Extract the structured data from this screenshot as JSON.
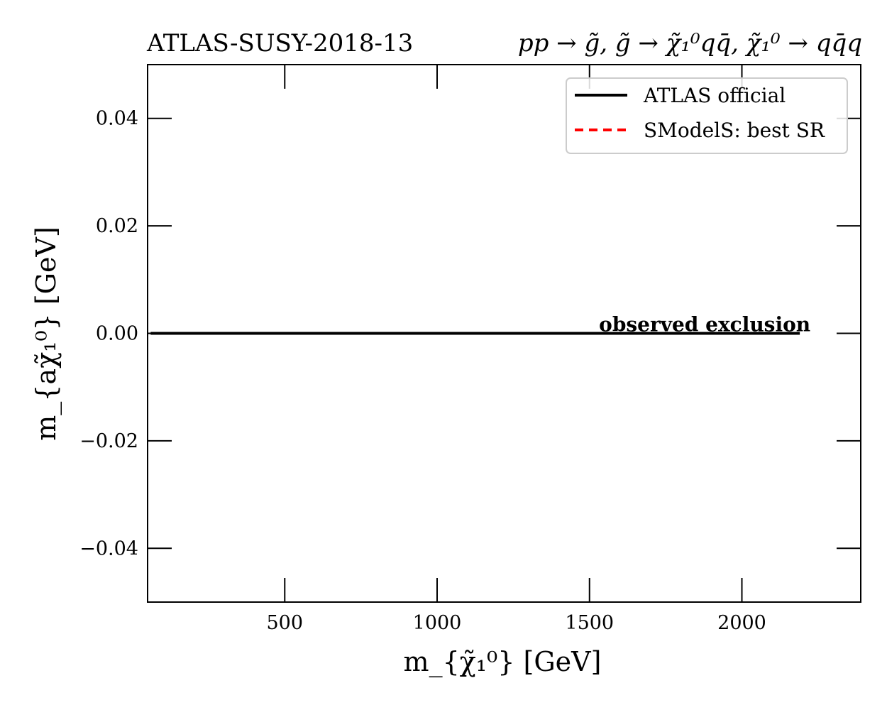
{
  "chart_data": {
    "type": "line",
    "title_left": "ATLAS-SUSY-2018-13",
    "title_right": "pp → g̃, g̃ → χ̃₁⁰qq̄, χ̃₁⁰ → qq̄q",
    "xlabel": "m_{χ̃₁⁰} [GeV]",
    "ylabel": "m_{aχ̃₁⁰} [GeV]",
    "xlim": [
      50,
      2390
    ],
    "ylim": [
      -0.05,
      0.05
    ],
    "x_ticks": [
      500,
      1000,
      1500,
      2000
    ],
    "y_ticks": [
      -0.04,
      -0.02,
      0.0,
      0.02,
      0.04
    ],
    "x_tick_labels": [
      "500",
      "1000",
      "1500",
      "2000"
    ],
    "y_tick_labels": [
      "−0.04",
      "−0.02",
      "0.00",
      "0.02",
      "0.04"
    ],
    "series": [
      {
        "name": "ATLAS official",
        "color": "#000000",
        "style": "solid",
        "x": [
          60,
          2190
        ],
        "y": [
          0.0,
          0.0
        ]
      },
      {
        "name": "SModelS: best SR",
        "color": "#ff0000",
        "style": "dashed",
        "x": [],
        "y": []
      }
    ],
    "annotations": [
      {
        "text": "observed exclusion",
        "x": 2225,
        "y": 0.0
      }
    ],
    "legend_position": "top-right",
    "grid": false
  }
}
